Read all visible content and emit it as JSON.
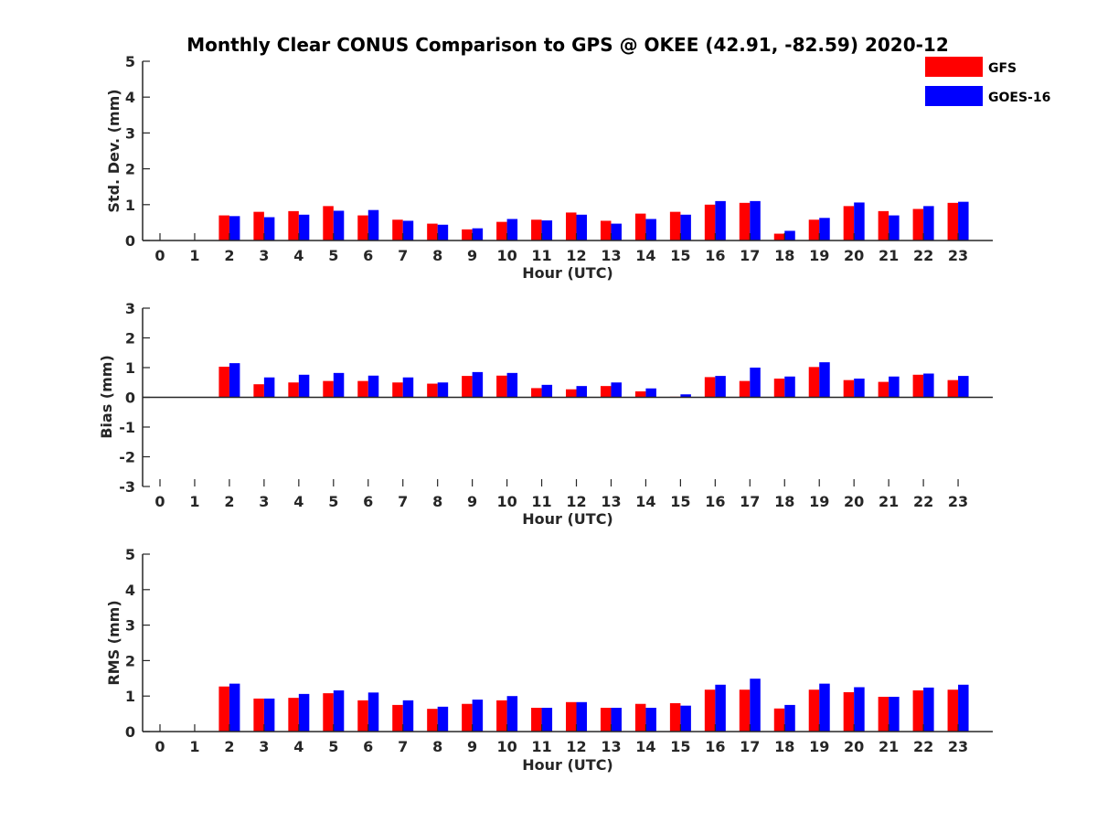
{
  "title": "Monthly Clear CONUS Comparison to GPS @ OKEE (42.91, -82.59) 2020-12",
  "legend": {
    "position": "top-right",
    "entries": [
      {
        "name": "GFS",
        "color": "#ff0000"
      },
      {
        "name": "GOES-16",
        "color": "#0000ff"
      }
    ]
  },
  "chart_data": [
    {
      "type": "bar",
      "xlabel": "Hour (UTC)",
      "ylabel": "Std. Dev. (mm)",
      "ylim": [
        0,
        5
      ],
      "yticks": [
        "0",
        "1",
        "2",
        "3",
        "4",
        "5"
      ],
      "categories": [
        "0",
        "1",
        "2",
        "3",
        "4",
        "5",
        "6",
        "7",
        "8",
        "9",
        "10",
        "11",
        "12",
        "13",
        "14",
        "15",
        "16",
        "17",
        "18",
        "19",
        "20",
        "21",
        "22",
        "23"
      ],
      "series": [
        {
          "name": "GFS",
          "color": "#ff0000",
          "values": [
            null,
            null,
            0.7,
            0.8,
            0.82,
            0.96,
            0.7,
            0.58,
            0.47,
            0.31,
            0.52,
            0.58,
            0.78,
            0.55,
            0.75,
            0.8,
            1.0,
            1.05,
            0.19,
            0.58,
            0.96,
            0.82,
            0.88,
            1.05
          ]
        },
        {
          "name": "GOES-16",
          "color": "#0000ff",
          "values": [
            null,
            null,
            0.68,
            0.65,
            0.72,
            0.83,
            0.85,
            0.55,
            0.44,
            0.34,
            0.6,
            0.56,
            0.72,
            0.47,
            0.6,
            0.72,
            1.1,
            1.1,
            0.27,
            0.63,
            1.06,
            0.7,
            0.96,
            1.08
          ]
        }
      ]
    },
    {
      "type": "bar",
      "xlabel": "Hour (UTC)",
      "ylabel": "Bias (mm)",
      "ylim": [
        -3,
        3
      ],
      "yticks": [
        "-3",
        "-2",
        "-1",
        "0",
        "1",
        "2",
        "3"
      ],
      "categories": [
        "0",
        "1",
        "2",
        "3",
        "4",
        "5",
        "6",
        "7",
        "8",
        "9",
        "10",
        "11",
        "12",
        "13",
        "14",
        "15",
        "16",
        "17",
        "18",
        "19",
        "20",
        "21",
        "22",
        "23"
      ],
      "series": [
        {
          "name": "GFS",
          "color": "#ff0000",
          "values": [
            null,
            null,
            1.03,
            0.44,
            0.5,
            0.55,
            0.55,
            0.5,
            0.46,
            0.72,
            0.73,
            0.31,
            0.27,
            0.38,
            0.2,
            0.02,
            0.68,
            0.55,
            0.63,
            1.02,
            0.58,
            0.52,
            0.76,
            0.58
          ]
        },
        {
          "name": "GOES-16",
          "color": "#0000ff",
          "values": [
            null,
            null,
            1.15,
            0.67,
            0.76,
            0.82,
            0.73,
            0.67,
            0.5,
            0.85,
            0.82,
            0.42,
            0.38,
            0.5,
            0.3,
            0.1,
            0.72,
            1.0,
            0.7,
            1.18,
            0.63,
            0.7,
            0.8,
            0.72
          ]
        }
      ]
    },
    {
      "type": "bar",
      "xlabel": "Hour (UTC)",
      "ylabel": "RMS (mm)",
      "ylim": [
        0,
        5
      ],
      "yticks": [
        "0",
        "1",
        "2",
        "3",
        "4",
        "5"
      ],
      "categories": [
        "0",
        "1",
        "2",
        "3",
        "4",
        "5",
        "6",
        "7",
        "8",
        "9",
        "10",
        "11",
        "12",
        "13",
        "14",
        "15",
        "16",
        "17",
        "18",
        "19",
        "20",
        "21",
        "22",
        "23"
      ],
      "series": [
        {
          "name": "GFS",
          "color": "#ff0000",
          "values": [
            null,
            null,
            1.27,
            0.93,
            0.95,
            1.08,
            0.88,
            0.75,
            0.64,
            0.78,
            0.88,
            0.67,
            0.83,
            0.67,
            0.78,
            0.8,
            1.18,
            1.18,
            0.65,
            1.18,
            1.11,
            0.98,
            1.16,
            1.18
          ]
        },
        {
          "name": "GOES-16",
          "color": "#0000ff",
          "values": [
            null,
            null,
            1.35,
            0.93,
            1.06,
            1.16,
            1.1,
            0.88,
            0.7,
            0.9,
            1.0,
            0.67,
            0.83,
            0.67,
            0.67,
            0.73,
            1.32,
            1.49,
            0.75,
            1.35,
            1.25,
            0.98,
            1.24,
            1.32
          ]
        }
      ]
    }
  ]
}
